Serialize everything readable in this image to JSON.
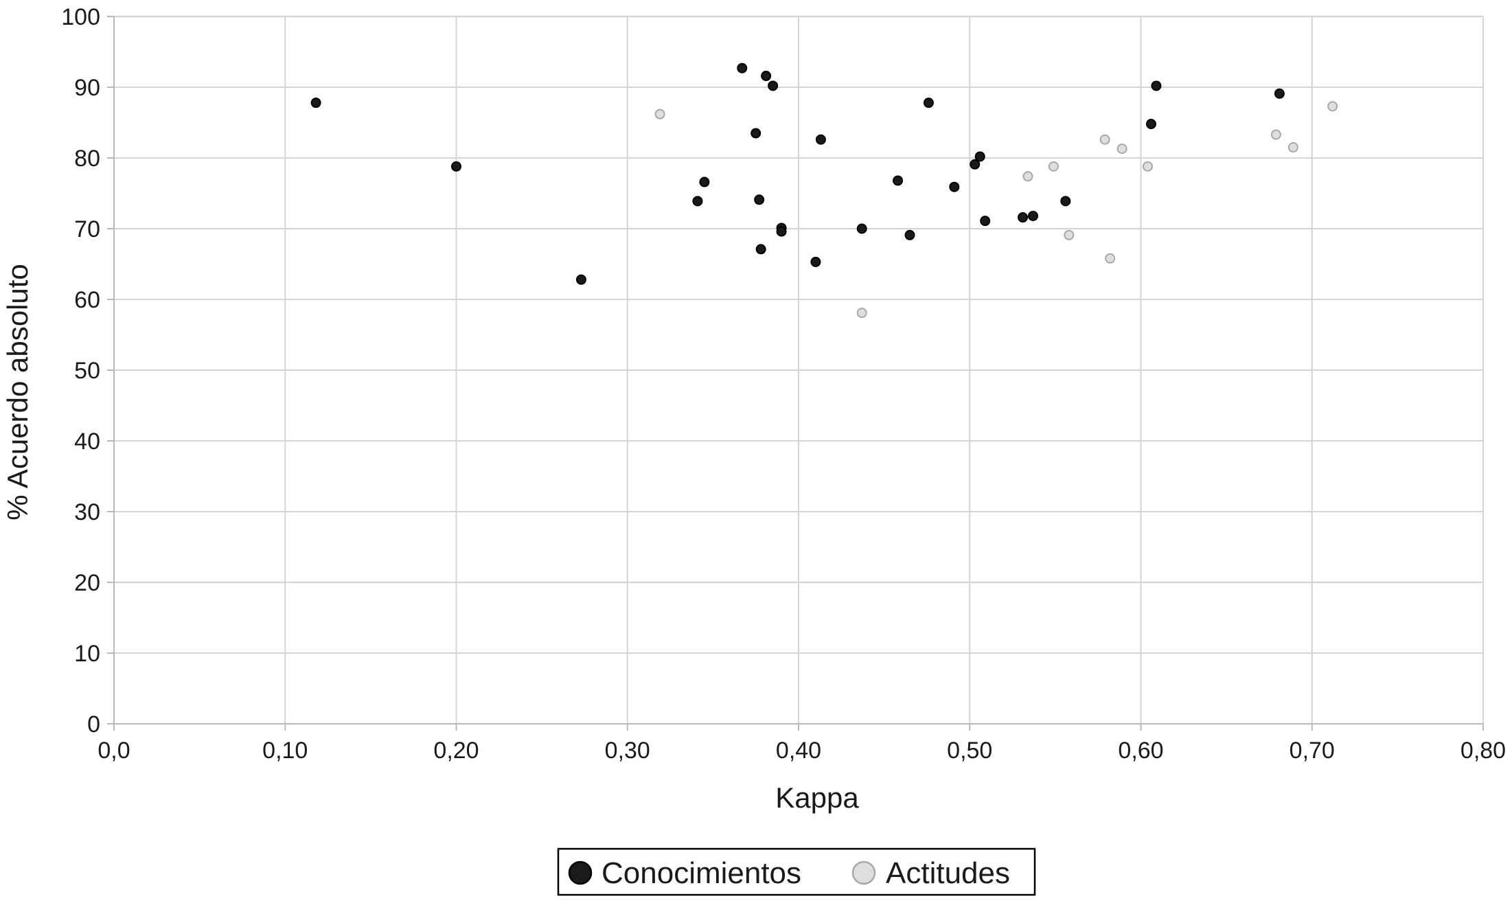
{
  "chart_data": {
    "type": "scatter",
    "title": "",
    "xlabel": "Kappa",
    "ylabel": "% Acuerdo absoluto",
    "xlim": [
      0,
      0.8
    ],
    "ylim": [
      0,
      100
    ],
    "x_ticks": [
      {
        "value": 0.0,
        "label": "0,0"
      },
      {
        "value": 0.1,
        "label": "0,10"
      },
      {
        "value": 0.2,
        "label": "0,20"
      },
      {
        "value": 0.3,
        "label": "0,30"
      },
      {
        "value": 0.4,
        "label": "0,40"
      },
      {
        "value": 0.5,
        "label": "0,50"
      },
      {
        "value": 0.6,
        "label": "0,60"
      },
      {
        "value": 0.7,
        "label": "0,70"
      },
      {
        "value": 0.8,
        "label": "0,80"
      }
    ],
    "y_ticks": [
      {
        "value": 0,
        "label": "0"
      },
      {
        "value": 10,
        "label": "10"
      },
      {
        "value": 20,
        "label": "20"
      },
      {
        "value": 30,
        "label": "30"
      },
      {
        "value": 40,
        "label": "40"
      },
      {
        "value": 50,
        "label": "50"
      },
      {
        "value": 60,
        "label": "60"
      },
      {
        "value": 70,
        "label": "70"
      },
      {
        "value": 80,
        "label": "80"
      },
      {
        "value": 90,
        "label": "90"
      },
      {
        "value": 100,
        "label": "100"
      }
    ],
    "grid": true,
    "legend_position": "bottom",
    "series": [
      {
        "name": "Conocimientos",
        "color": "#1a1a1a",
        "stroke": "#000000",
        "points": [
          [
            0.118,
            87.8
          ],
          [
            0.2,
            78.8
          ],
          [
            0.273,
            62.8
          ],
          [
            0.341,
            73.9
          ],
          [
            0.345,
            76.6
          ],
          [
            0.367,
            92.7
          ],
          [
            0.375,
            83.5
          ],
          [
            0.377,
            74.1
          ],
          [
            0.378,
            67.1
          ],
          [
            0.381,
            91.6
          ],
          [
            0.385,
            90.2
          ],
          [
            0.39,
            70.1
          ],
          [
            0.39,
            69.6
          ],
          [
            0.41,
            65.3
          ],
          [
            0.413,
            82.6
          ],
          [
            0.437,
            70.0
          ],
          [
            0.458,
            76.8
          ],
          [
            0.465,
            69.1
          ],
          [
            0.476,
            87.8
          ],
          [
            0.491,
            75.9
          ],
          [
            0.503,
            79.1
          ],
          [
            0.506,
            80.2
          ],
          [
            0.509,
            71.1
          ],
          [
            0.531,
            71.6
          ],
          [
            0.537,
            71.8
          ],
          [
            0.556,
            73.9
          ],
          [
            0.606,
            84.8
          ],
          [
            0.609,
            90.2
          ],
          [
            0.681,
            89.1
          ]
        ]
      },
      {
        "name": "Actitudes",
        "color": "#dedede",
        "stroke": "#a8a8a8",
        "points": [
          [
            0.319,
            86.2
          ],
          [
            0.437,
            58.1
          ],
          [
            0.534,
            77.4
          ],
          [
            0.549,
            78.8
          ],
          [
            0.558,
            69.1
          ],
          [
            0.579,
            82.6
          ],
          [
            0.582,
            65.8
          ],
          [
            0.589,
            81.3
          ],
          [
            0.604,
            78.8
          ],
          [
            0.679,
            83.3
          ],
          [
            0.689,
            81.5
          ],
          [
            0.712,
            87.3
          ]
        ]
      }
    ],
    "legend": [
      {
        "label": "Conocimientos",
        "color": "#1a1a1a",
        "stroke": "#000000"
      },
      {
        "label": "Actitudes",
        "color": "#dedede",
        "stroke": "#a8a8a8"
      }
    ],
    "colors": {
      "grid": "#d4d4d4",
      "axis": "#b8b8b8",
      "text": "#1a1a1a",
      "legend_border": "#000000"
    }
  }
}
